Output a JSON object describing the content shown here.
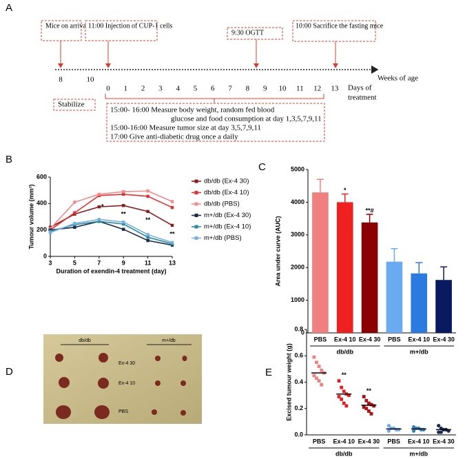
{
  "figure": {
    "panel": "A",
    "events": [
      "Mice on arrival",
      "11:00 Injection of CUP-1 cells",
      "9:30 OGTT",
      "10:00 Sacrifice the fasting mice"
    ],
    "weeks_label": "Weeks of age",
    "weeks": [
      8,
      10
    ],
    "stabilize": "Stabilize",
    "days": [
      0,
      1,
      2,
      3,
      4,
      5,
      6,
      7,
      8,
      9,
      10,
      11,
      12,
      13
    ],
    "days_label": [
      "Days of",
      "treatment"
    ],
    "notes": [
      "15:00- 16:00 Measure body weight, random fed blood",
      "glucose and food consumption at day 1,3,5,7,9,11",
      "15:00-16:00  Measure tumor size at day 3,5,7,9,11",
      "17:00          Give anti-diabetic drug once a daily"
    ]
  },
  "photo": {
    "panel": "D",
    "columns": [
      "db/db",
      "m+/db"
    ],
    "rows": [
      "Ex-4 30",
      "Ex-4 10",
      "PBS"
    ]
  },
  "chart_data": [
    {
      "type": "line",
      "panel": "B",
      "ylabel": "Tumour volume (mm³)",
      "xlabel": "Duration of exendin-4 treatment (day)",
      "x": [
        3,
        5,
        7,
        9,
        11,
        13
      ],
      "xlim": [
        3,
        13
      ],
      "xticks": [
        3,
        5,
        7,
        9,
        11,
        13
      ],
      "ylim": [
        0,
        600
      ],
      "yticks": [
        0,
        200,
        400,
        600
      ],
      "series": [
        {
          "name": "db/db (Ex-4 30)",
          "color": "#8b1a1a",
          "values": [
            220,
            320,
            375,
            385,
            340,
            235
          ]
        },
        {
          "name": "db/db (Ex-4 10)",
          "color": "#e03030",
          "values": [
            200,
            330,
            460,
            470,
            455,
            370
          ]
        },
        {
          "name": "db/db (PBS)",
          "color": "#f08a8a",
          "values": [
            210,
            410,
            470,
            490,
            495,
            415
          ]
        },
        {
          "name": "m+/db (Ex-4 30)",
          "color": "#1a2a4a",
          "values": [
            200,
            220,
            265,
            205,
            120,
            85
          ]
        },
        {
          "name": "m+/db (Ex-4 10)",
          "color": "#2a8aa0",
          "values": [
            190,
            240,
            265,
            245,
            145,
            95
          ]
        },
        {
          "name": "m+/db (PBS)",
          "color": "#7ab0e0",
          "values": [
            180,
            250,
            280,
            260,
            165,
            105
          ]
        }
      ],
      "annotations": [
        {
          "text": "*",
          "x": 7
        },
        {
          "text": "**",
          "x": 9
        },
        {
          "text": "**",
          "x": 11
        },
        {
          "text": "**",
          "x": 13
        }
      ]
    },
    {
      "type": "bar",
      "panel": "C",
      "ylabel": "Area under curve (AUC)",
      "categories": [
        "PBS",
        "Ex-4 10",
        "Ex-4 30",
        "PBS",
        "Ex-4 10",
        "Ex-4 30"
      ],
      "groups": [
        "db/db",
        "m+/db"
      ],
      "values": [
        4300,
        4000,
        3380,
        2180,
        1820,
        1620
      ],
      "errors": [
        400,
        250,
        250,
        400,
        330,
        400
      ],
      "value_labels": [
        null,
        "*",
        "**#",
        null,
        null,
        null
      ],
      "colors": [
        "#f08080",
        "#ee2020",
        "#8b0000",
        "#6aaaf0",
        "#2a7ae0",
        "#0a1a60"
      ],
      "ylim": [
        0,
        5000
      ],
      "yticks": [
        0,
        1000,
        2000,
        3000,
        4000,
        5000
      ]
    },
    {
      "type": "strip",
      "panel": "E",
      "ylabel": "Excised tumour weight (g)",
      "categories": [
        "PBS",
        "Ex-4 10",
        "Ex-4 30",
        "PBS",
        "Ex-4 10",
        "Ex-4 30"
      ],
      "groups": [
        "db/db",
        "m+/db"
      ],
      "values": [
        [
          0.59,
          0.55,
          0.52,
          0.49,
          0.47,
          0.45,
          0.43,
          0.41,
          0.38
        ],
        [
          0.41,
          0.36,
          0.33,
          0.31,
          0.3,
          0.29,
          0.27,
          0.24,
          0.22
        ],
        [
          0.29,
          0.26,
          0.24,
          0.23,
          0.22,
          0.21,
          0.2,
          0.18,
          0.16
        ],
        [
          0.07,
          0.05,
          0.05,
          0.04,
          0.04,
          0.03
        ],
        [
          0.06,
          0.05,
          0.05,
          0.04,
          0.04,
          0.03
        ],
        [
          0.07,
          0.05,
          0.04,
          0.04,
          0.03,
          0.02,
          0.02
        ]
      ],
      "means": [
        0.47,
        0.31,
        0.225,
        0.045,
        0.045,
        0.04
      ],
      "value_labels": [
        null,
        "**",
        "**",
        null,
        null,
        null
      ],
      "colors": [
        "#f08080",
        "#e02020",
        "#b01010",
        "#6aaaf0",
        "#3080c0",
        "#1a2a50"
      ],
      "markers": [
        "square",
        "square",
        "square",
        "circle",
        "circle",
        "circle"
      ],
      "ylim": [
        0,
        0.8
      ],
      "yticks": [
        {
          "value": 0,
          "label": "0.0"
        },
        0.2,
        0.4,
        0.6,
        0.8
      ]
    }
  ]
}
